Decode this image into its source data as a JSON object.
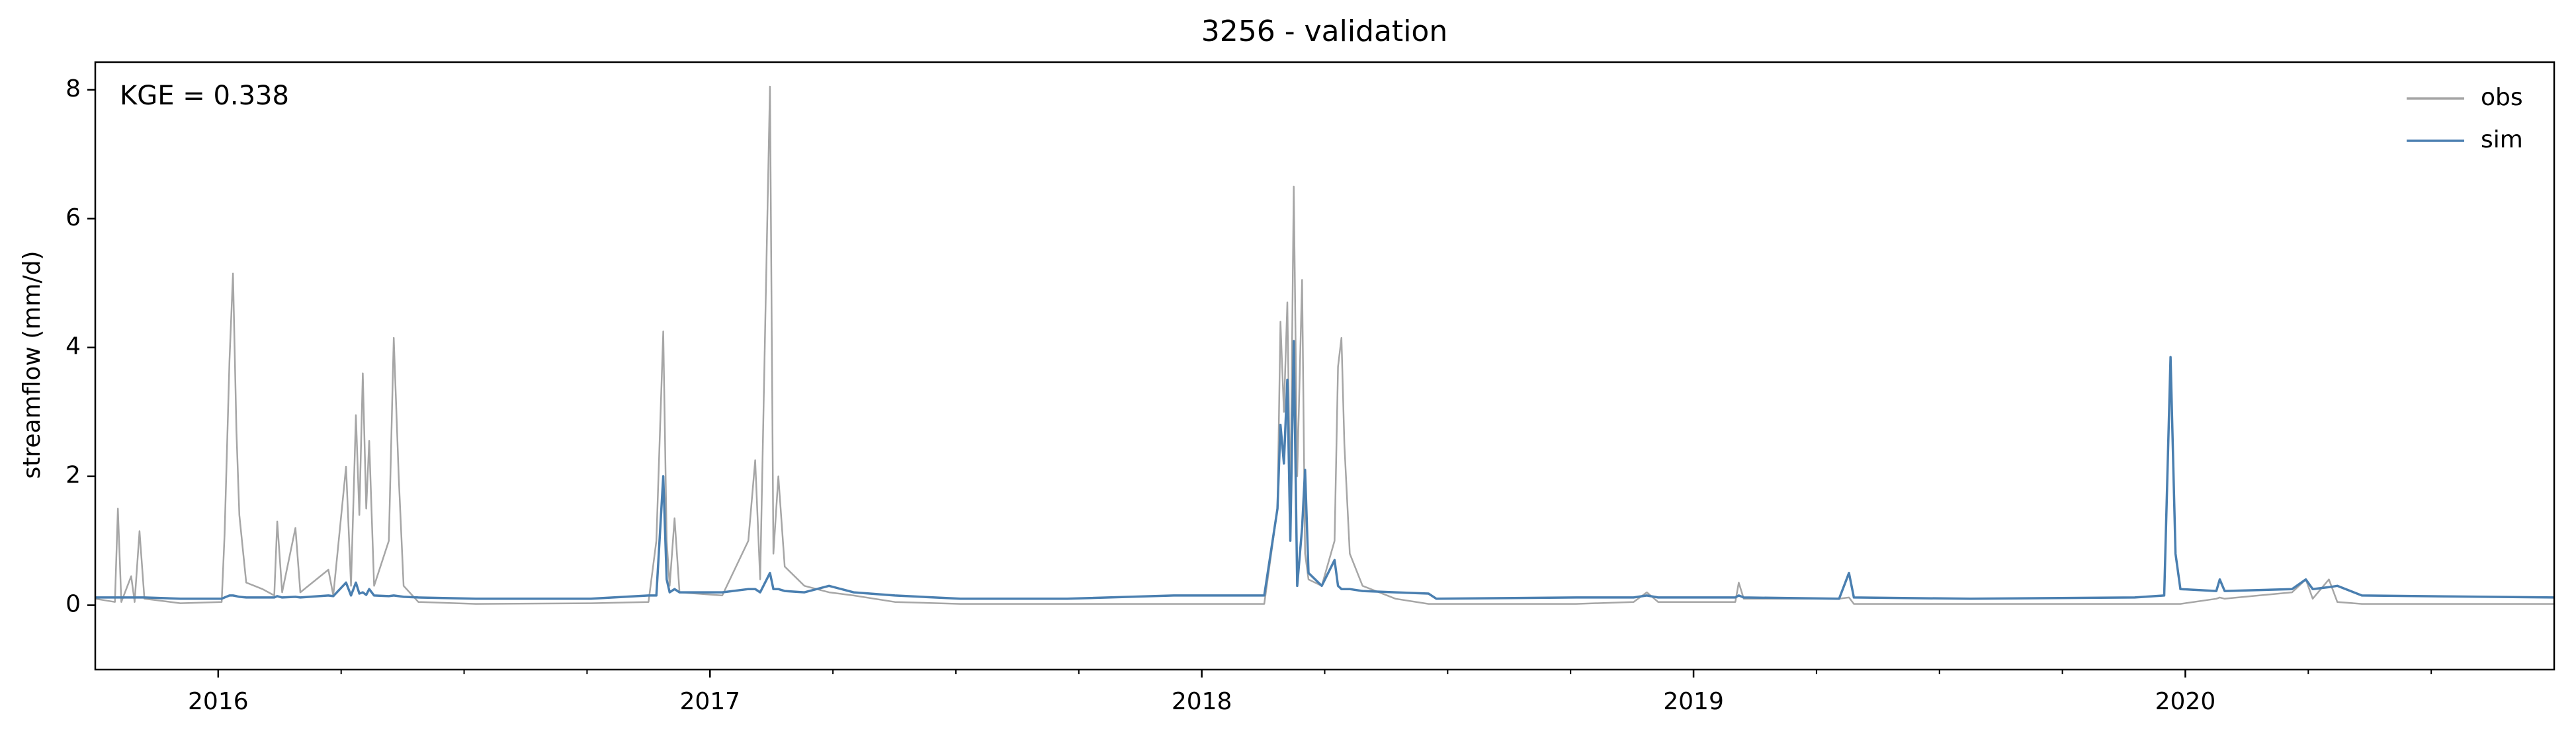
{
  "chart_data": {
    "type": "line",
    "title": "3256 - validation",
    "ylabel": "streamflow (mm/d)",
    "annotation": "KGE = 0.338",
    "x": [
      2015.75,
      2015.79,
      2015.796,
      2015.803,
      2015.823,
      2015.83,
      2015.84,
      2015.85,
      2015.923,
      2016.007,
      2016.013,
      2016.023,
      2016.03,
      2016.037,
      2016.043,
      2016.057,
      2016.09,
      2016.114,
      2016.12,
      2016.13,
      2016.157,
      2016.167,
      2016.224,
      2016.234,
      2016.26,
      2016.27,
      2016.28,
      2016.287,
      2016.294,
      2016.301,
      2016.307,
      2016.317,
      2016.347,
      2016.357,
      2016.367,
      2016.377,
      2016.407,
      2016.524,
      2016.758,
      2016.875,
      2016.891,
      2016.905,
      2016.912,
      2016.918,
      2016.928,
      2016.938,
      2017.025,
      2017.078,
      2017.092,
      2017.102,
      2017.122,
      2017.129,
      2017.139,
      2017.152,
      2017.192,
      2017.242,
      2017.292,
      2017.376,
      2017.509,
      2017.726,
      2017.943,
      2018.127,
      2018.154,
      2018.16,
      2018.167,
      2018.174,
      2018.18,
      2018.187,
      2018.194,
      2018.204,
      2018.21,
      2018.217,
      2018.244,
      2018.27,
      2018.277,
      2018.284,
      2018.29,
      2018.301,
      2018.327,
      2018.394,
      2018.461,
      2018.477,
      2018.761,
      2018.878,
      2018.905,
      2018.928,
      2019.085,
      2019.092,
      2019.102,
      2019.296,
      2019.316,
      2019.326,
      2019.563,
      2019.897,
      2019.957,
      2019.97,
      2019.98,
      2019.99,
      2020.063,
      2020.07,
      2020.08,
      2020.217,
      2020.245,
      2020.259,
      2020.292,
      2020.309,
      2020.359,
      2020.75
    ],
    "series": [
      {
        "name": "obs",
        "color": "#a6a6a6",
        "values": [
          0.1,
          0.05,
          1.5,
          0.05,
          0.45,
          0.05,
          1.15,
          0.1,
          0.03,
          0.05,
          1.1,
          3.8,
          5.15,
          2.7,
          1.4,
          0.35,
          0.25,
          0.15,
          1.3,
          0.2,
          1.2,
          0.2,
          0.55,
          0.15,
          2.15,
          0.3,
          2.95,
          1.4,
          3.6,
          1.5,
          2.55,
          0.3,
          1.0,
          4.15,
          2.0,
          0.3,
          0.05,
          0.02,
          0.03,
          0.05,
          1.0,
          4.25,
          1.0,
          0.3,
          1.35,
          0.2,
          0.15,
          1.0,
          2.25,
          0.4,
          8.05,
          0.8,
          2.0,
          0.6,
          0.3,
          0.2,
          0.15,
          0.05,
          0.02,
          0.02,
          0.02,
          0.02,
          1.5,
          4.4,
          3.0,
          4.7,
          1.5,
          6.5,
          2.0,
          5.05,
          0.8,
          0.4,
          0.3,
          1.0,
          3.7,
          4.15,
          2.5,
          0.8,
          0.3,
          0.1,
          0.02,
          0.02,
          0.02,
          0.05,
          0.2,
          0.05,
          0.05,
          0.35,
          0.1,
          0.1,
          0.12,
          0.02,
          0.02,
          0.02,
          0.02,
          0.02,
          0.02,
          0.02,
          0.1,
          0.12,
          0.1,
          0.2,
          0.4,
          0.1,
          0.4,
          0.05,
          0.02,
          0.02
        ]
      },
      {
        "name": "sim",
        "color": "#4a7fb0",
        "values": [
          0.12,
          0.12,
          0.12,
          0.12,
          0.12,
          0.12,
          0.12,
          0.12,
          0.1,
          0.1,
          0.12,
          0.15,
          0.15,
          0.14,
          0.13,
          0.12,
          0.12,
          0.12,
          0.14,
          0.12,
          0.13,
          0.12,
          0.15,
          0.14,
          0.35,
          0.15,
          0.35,
          0.18,
          0.2,
          0.16,
          0.25,
          0.15,
          0.14,
          0.15,
          0.14,
          0.13,
          0.12,
          0.1,
          0.1,
          0.15,
          0.15,
          2.0,
          0.4,
          0.2,
          0.25,
          0.2,
          0.2,
          0.25,
          0.25,
          0.2,
          0.5,
          0.25,
          0.25,
          0.22,
          0.2,
          0.3,
          0.2,
          0.15,
          0.1,
          0.1,
          0.15,
          0.15,
          1.5,
          2.8,
          2.2,
          3.5,
          1.0,
          4.1,
          0.3,
          1.2,
          2.1,
          0.5,
          0.3,
          0.7,
          0.3,
          0.25,
          0.25,
          0.25,
          0.22,
          0.2,
          0.18,
          0.1,
          0.12,
          0.12,
          0.15,
          0.12,
          0.12,
          0.15,
          0.12,
          0.1,
          0.5,
          0.12,
          0.1,
          0.12,
          0.15,
          3.85,
          0.8,
          0.25,
          0.22,
          0.4,
          0.22,
          0.25,
          0.4,
          0.25,
          0.28,
          0.3,
          0.15,
          0.12
        ]
      }
    ],
    "xlim": [
      2015.75,
      2020.75
    ],
    "xticks": [
      2016,
      2017,
      2018,
      2019,
      2020
    ],
    "xminorticks": [
      2016.25,
      2016.5,
      2016.75,
      2017.25,
      2017.5,
      2017.75,
      2018.25,
      2018.5,
      2018.75,
      2019.25,
      2019.5,
      2019.75,
      2020.25,
      2020.5
    ],
    "ylim": [
      -1,
      8.43
    ],
    "yticks": [
      0,
      2,
      4,
      6,
      8
    ],
    "grid": false,
    "legend": "upper right"
  }
}
